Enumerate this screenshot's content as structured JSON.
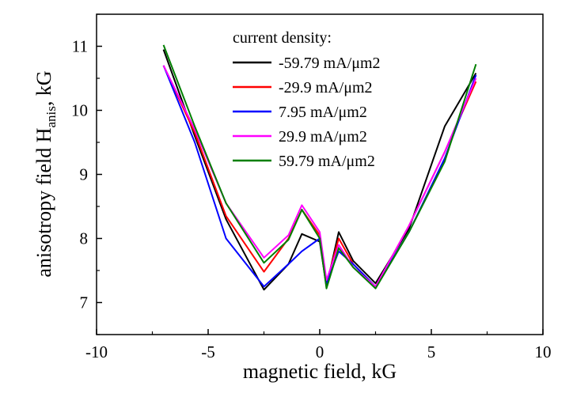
{
  "chart_data": {
    "type": "line",
    "title": "",
    "xlabel": "magnetic field, kG",
    "ylabel": "anisotropy field H",
    "ylabel_subscript": "anis",
    "ylabel_suffix": ", kG",
    "xlim": [
      -10,
      10
    ],
    "ylim": [
      6.5,
      11.5
    ],
    "xticks": [
      -10,
      -5,
      0,
      5,
      10
    ],
    "yticks": [
      7,
      8,
      9,
      10,
      11
    ],
    "grid": false,
    "legend": {
      "title": "current density:",
      "placement": "top-center"
    },
    "series": [
      {
        "name": "-59.79 mA/μm2",
        "color": "#000000",
        "x": [
          -7,
          -5.6,
          -4.2,
          -2.5,
          -1.4,
          -0.8,
          0,
          0.3,
          0.85,
          1.5,
          2.5,
          4,
          5.6,
          7
        ],
        "y": [
          10.95,
          9.6,
          8.3,
          7.2,
          7.6,
          8.07,
          7.95,
          7.25,
          8.1,
          7.65,
          7.3,
          8.15,
          9.75,
          10.58
        ]
      },
      {
        "name": "-29.9 mA/μm2",
        "color": "#ff0000",
        "x": [
          -7,
          -5.6,
          -4.2,
          -2.5,
          -1.4,
          -0.8,
          0,
          0.3,
          0.85,
          1.5,
          2.5,
          4,
          5.6,
          7
        ],
        "y": [
          10.7,
          9.65,
          8.35,
          7.48,
          8.0,
          8.45,
          8.05,
          7.3,
          8.0,
          7.6,
          7.25,
          8.2,
          9.35,
          10.45
        ]
      },
      {
        "name": "7.95 mA/μm2",
        "color": "#0000ff",
        "x": [
          -7,
          -5.6,
          -4.2,
          -2.5,
          -1.4,
          -0.8,
          0,
          0.3,
          0.85,
          1.5,
          2.5,
          4,
          5.6,
          7
        ],
        "y": [
          10.7,
          9.5,
          8.0,
          7.25,
          7.6,
          7.8,
          8.0,
          7.3,
          7.8,
          7.6,
          7.25,
          8.1,
          9.25,
          10.55
        ]
      },
      {
        "name": "29.9 mA/μm2",
        "color": "#ff00ff",
        "x": [
          -7,
          -5.6,
          -4.2,
          -2.5,
          -1.4,
          -0.8,
          0,
          0.3,
          0.85,
          1.5,
          2.5,
          4,
          5.6,
          7
        ],
        "y": [
          10.7,
          9.7,
          8.55,
          7.7,
          8.05,
          8.52,
          8.1,
          7.35,
          7.9,
          7.55,
          7.25,
          8.2,
          9.35,
          10.5
        ]
      },
      {
        "name": "59.79 mA/μm2",
        "color": "#007f00",
        "x": [
          -7,
          -5.6,
          -4.2,
          -2.5,
          -1.4,
          -0.8,
          0,
          0.3,
          0.85,
          1.5,
          2.5,
          4,
          5.6,
          7
        ],
        "y": [
          11.02,
          9.75,
          8.55,
          7.62,
          7.98,
          8.45,
          8.0,
          7.22,
          7.85,
          7.55,
          7.22,
          8.1,
          9.2,
          10.72
        ]
      }
    ]
  }
}
